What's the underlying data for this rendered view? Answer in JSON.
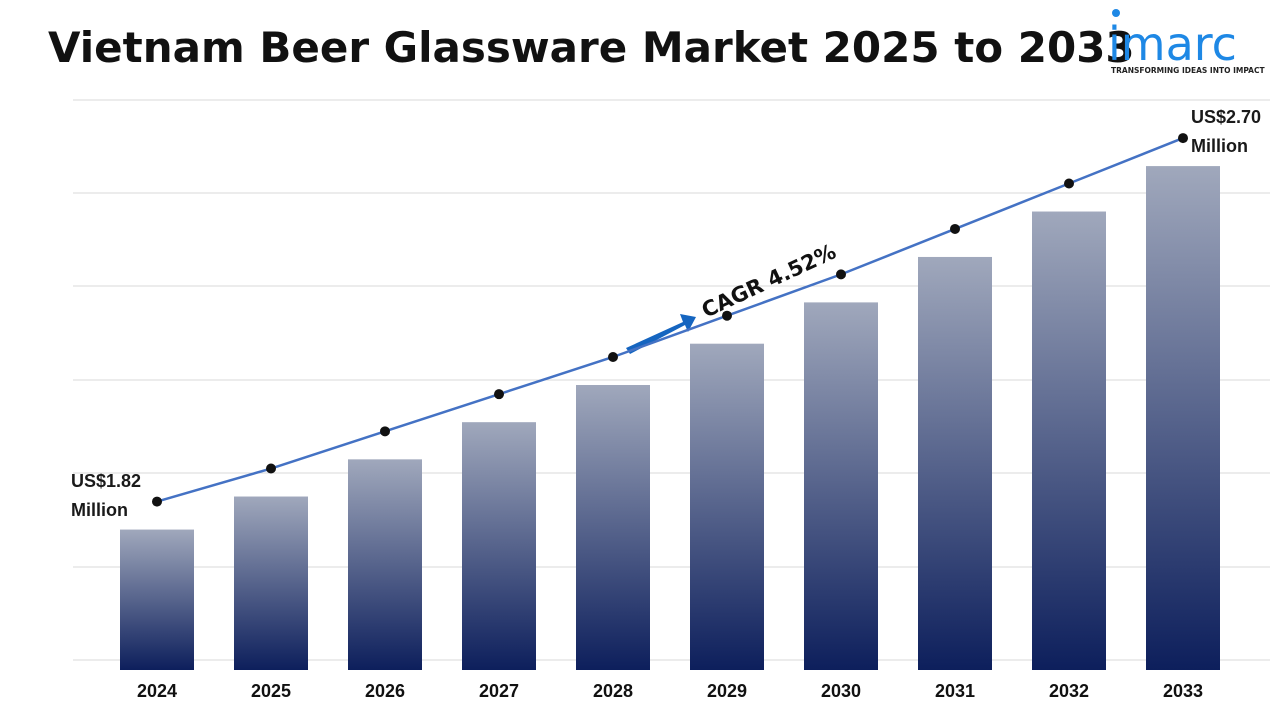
{
  "chart_data": {
    "type": "bar",
    "title": "Vietnam Beer Glassware Market 2025 to 2033",
    "categories": [
      "2024",
      "2025",
      "2026",
      "2027",
      "2028",
      "2029",
      "2030",
      "2031",
      "2032",
      "2033"
    ],
    "values": [
      1.82,
      1.9,
      1.99,
      2.08,
      2.17,
      2.27,
      2.37,
      2.48,
      2.59,
      2.7
    ],
    "value_labels": [
      "US$1.82 Million",
      null,
      null,
      null,
      null,
      null,
      null,
      null,
      null,
      "US$2.70 Million"
    ],
    "annotation": "CAGR 4.52%",
    "color": "#0d1f5c",
    "line_color": "#4472c4",
    "ylim": [
      1.48,
      2.86
    ]
  },
  "logo": {
    "name": "imarc",
    "tagline": "TRANSFORMING IDEAS INTO IMPACT"
  }
}
